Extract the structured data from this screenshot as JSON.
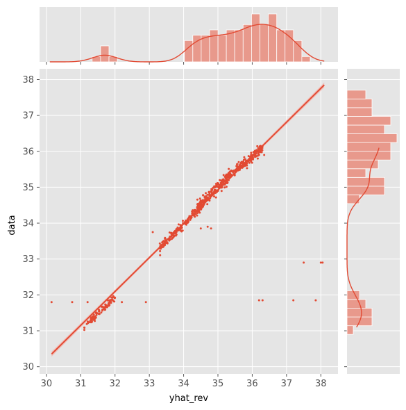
{
  "chart_data": {
    "type": "scatter",
    "xlabel": "yhat_rev",
    "ylabel": "data",
    "xlim": [
      29.8,
      38.5
    ],
    "ylim": [
      29.8,
      38.3
    ],
    "x_ticks": [
      "30",
      "31",
      "32",
      "33",
      "34",
      "35",
      "36",
      "37",
      "38"
    ],
    "y_ticks": [
      "30",
      "31",
      "32",
      "33",
      "34",
      "35",
      "36",
      "37",
      "38"
    ],
    "grid": true,
    "style": "ggplot",
    "colors": {
      "points": "#e24a33",
      "hist_fill": "#e8998c",
      "hist_edge": "#ffffff",
      "band": "#f2b8b0",
      "panel_bg": "#e5e5e5",
      "grid": "#ffffff"
    },
    "regression_line": {
      "x": [
        30.15,
        38.1
      ],
      "y": [
        30.35,
        37.85
      ],
      "ci_band": true
    },
    "point_clusters": [
      {
        "x_range": [
          31.1,
          32.0
        ],
        "trend": [
          [
            31.1,
            31.1
          ],
          [
            32.0,
            31.95
          ]
        ],
        "n": 90,
        "spread": 0.1
      },
      {
        "x_range": [
          33.3,
          34.6
        ],
        "trend": [
          [
            33.3,
            33.3
          ],
          [
            34.6,
            34.55
          ]
        ],
        "n": 170,
        "spread": 0.12
      },
      {
        "x_range": [
          34.4,
          35.3
        ],
        "trend": [
          [
            34.4,
            34.45
          ],
          [
            35.3,
            35.25
          ]
        ],
        "n": 190,
        "spread": 0.15
      },
      {
        "x_range": [
          35.2,
          36.3
        ],
        "trend": [
          [
            35.2,
            35.2
          ],
          [
            36.3,
            36.1
          ]
        ],
        "n": 210,
        "spread": 0.14
      }
    ],
    "outliers": [
      [
        30.15,
        31.8
      ],
      [
        30.75,
        31.8
      ],
      [
        31.2,
        31.8
      ],
      [
        32.2,
        31.8
      ],
      [
        32.9,
        31.8
      ],
      [
        33.1,
        33.75
      ],
      [
        34.5,
        33.85
      ],
      [
        34.8,
        33.85
      ],
      [
        34.7,
        33.9
      ],
      [
        36.2,
        31.85
      ],
      [
        36.3,
        31.85
      ],
      [
        37.2,
        31.85
      ],
      [
        37.5,
        32.9
      ],
      [
        37.85,
        31.85
      ],
      [
        38.0,
        32.9
      ],
      [
        38.05,
        32.9
      ],
      [
        36.2,
        35.9
      ],
      [
        36.35,
        35.9
      ]
    ],
    "x_hist": {
      "bin_start": 30.6,
      "bin_width": 0.2445,
      "counts": [
        0,
        0,
        0,
        1,
        3,
        1,
        0,
        0,
        0,
        0,
        0,
        0,
        0,
        0,
        4,
        5,
        5,
        6,
        5,
        6,
        6,
        7,
        9,
        7,
        9,
        6,
        6,
        4,
        1
      ]
    },
    "y_hist": {
      "bin_start": 30.9,
      "bin_width": 0.243,
      "counts": [
        1,
        4,
        4,
        3,
        2,
        0,
        0,
        0,
        0,
        0,
        0,
        0,
        0,
        0,
        0,
        2,
        6,
        6,
        3,
        5,
        7,
        7,
        8,
        6,
        7,
        4,
        4,
        3
      ]
    }
  }
}
